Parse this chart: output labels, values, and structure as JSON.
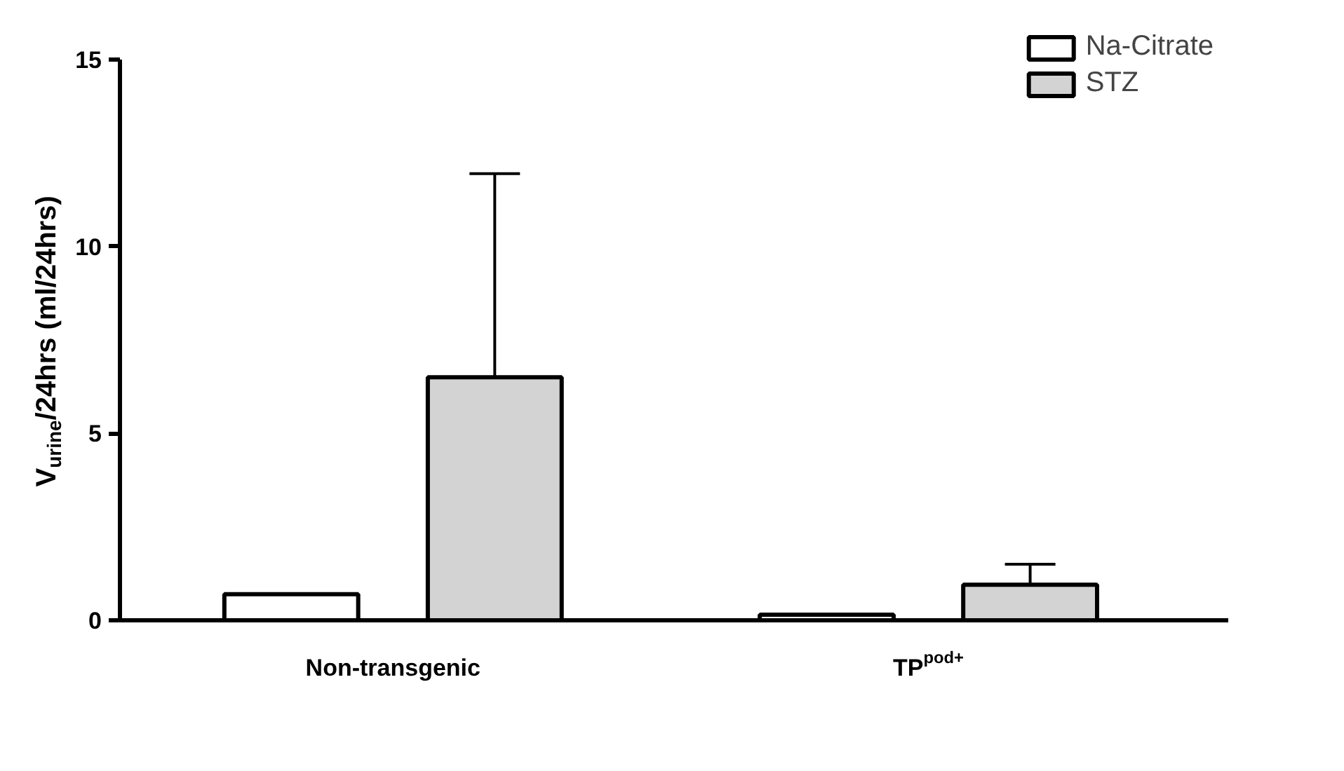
{
  "chart_data": {
    "type": "bar",
    "ylabel": "V$_{urine}$/24hrs (ml/24hrs)",
    "categories": [
      "Non-transgenic",
      "TP$^{pod+}$"
    ],
    "series": [
      {
        "name": "Na-Citrate",
        "color": "#ffffff",
        "values": [
          0.7,
          0.15
        ]
      },
      {
        "name": "STZ",
        "color": "#d3d3d3",
        "values": [
          6.5,
          0.95
        ],
        "errors": [
          5.45,
          0.55
        ]
      }
    ],
    "ylim": [
      0,
      15
    ],
    "yticks": [
      0,
      5,
      10,
      15
    ],
    "grid": false,
    "legend": "top right"
  }
}
